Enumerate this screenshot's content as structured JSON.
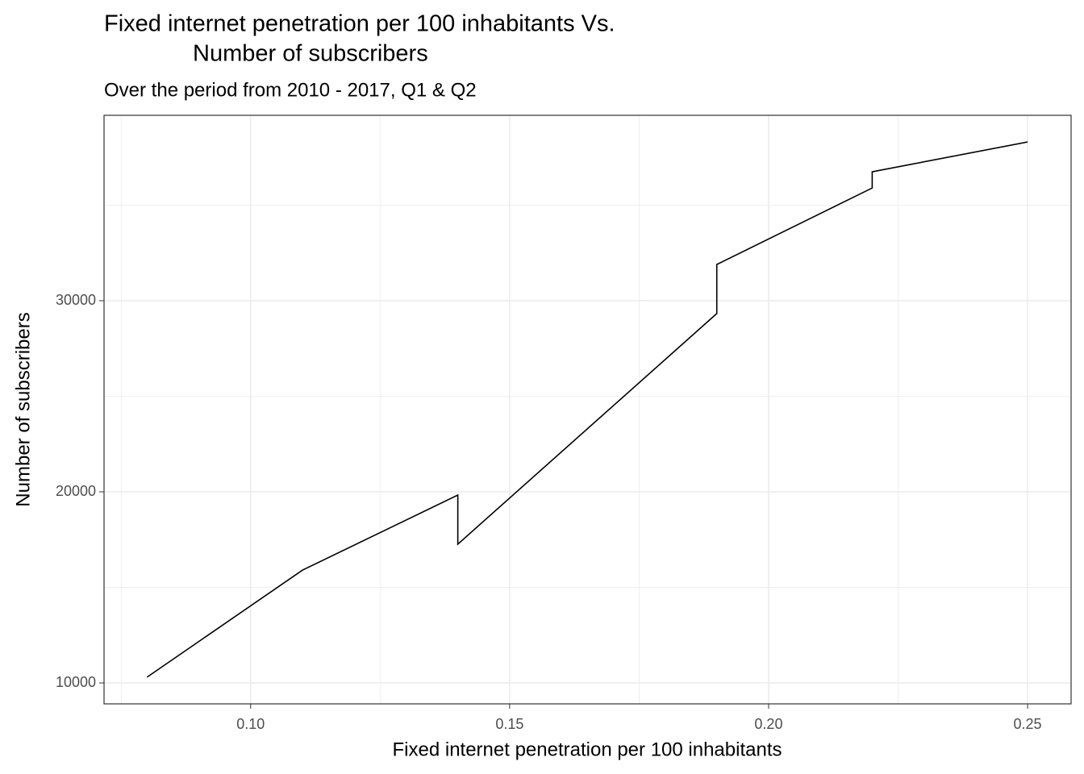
{
  "chart_data": {
    "type": "line",
    "title": [
      "Fixed internet penetration per 100 inhabitants Vs.",
      "Number of subscribers"
    ],
    "subtitle": "Over the period from 2010 - 2017, Q1 & Q2",
    "x_label": "Fixed internet penetration per 100 inhabitants",
    "y_label": "Number of subscribers",
    "x": [
      0.08,
      0.11,
      0.14,
      0.14,
      0.19,
      0.19,
      0.22,
      0.22,
      0.25
    ],
    "values": [
      10300,
      15900,
      19830,
      17260,
      29330,
      31900,
      35900,
      36750,
      38310
    ],
    "color": "#000000",
    "xlim": [
      0.0717,
      0.2584
    ],
    "ylim": [
      8903,
      39705
    ],
    "xticks": [
      {
        "value": 0.1,
        "label": "0.10"
      },
      0.15,
      {
        "value": 0.2,
        "label": "0.20"
      },
      0.25
    ],
    "yticks": [
      10000,
      20000,
      30000
    ],
    "x_minor_grid": [
      0.075,
      0.125,
      0.175,
      0.225
    ],
    "y_minor_grid": [
      15000,
      25000,
      35000
    ],
    "grid": true
  }
}
